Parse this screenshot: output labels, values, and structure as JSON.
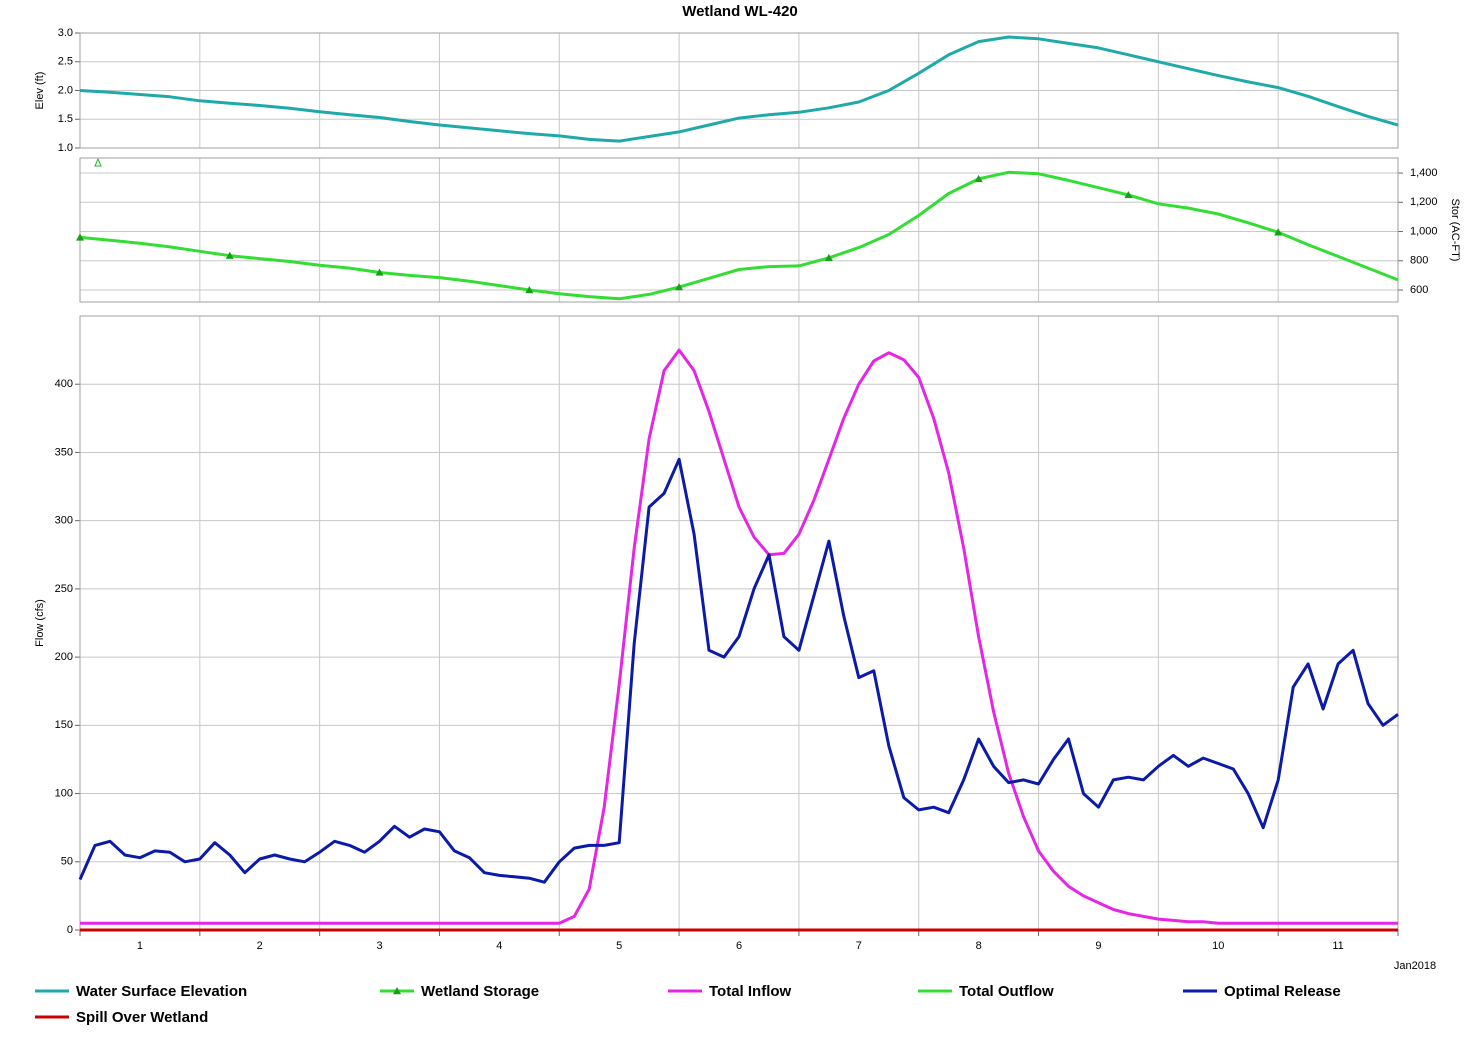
{
  "title": "Wetland WL-420",
  "x_categories": [
    "1",
    "2",
    "3",
    "4",
    "5",
    "6",
    "7",
    "8",
    "9",
    "10",
    "11"
  ],
  "x_end_label": "Jan2018",
  "chart_data": [
    {
      "type": "line",
      "ylabel": "Elev (ft)",
      "axis_side": "left",
      "xlim": [
        0,
        11
      ],
      "xticks": [
        0,
        1,
        2,
        3,
        4,
        5,
        6,
        7,
        8,
        9,
        10,
        11
      ],
      "ylim": [
        1,
        3
      ],
      "yticks": [
        {
          "value": 1,
          "label": "1.0"
        },
        1.5,
        {
          "value": 2,
          "label": "2.0"
        },
        2.5,
        {
          "value": 3,
          "label": "3.0"
        }
      ],
      "grid": true,
      "x": [
        0,
        0.25,
        0.5,
        0.75,
        1,
        1.25,
        1.5,
        1.75,
        2,
        2.25,
        2.5,
        2.75,
        3,
        3.25,
        3.5,
        3.75,
        4,
        4.25,
        4.5,
        4.75,
        5,
        5.25,
        5.5,
        5.75,
        6,
        6.25,
        6.5,
        6.75,
        7,
        7.25,
        7.5,
        7.75,
        8,
        8.25,
        8.5,
        8.75,
        9,
        9.25,
        9.5,
        9.75,
        10,
        10.25,
        10.5,
        10.75,
        11
      ],
      "series": [
        {
          "name": "Water Surface Elevation",
          "color": "#1fa9a9",
          "values": [
            2.0,
            1.97,
            1.93,
            1.89,
            1.82,
            1.78,
            1.74,
            1.69,
            1.63,
            1.58,
            1.53,
            1.46,
            1.4,
            1.35,
            1.3,
            1.25,
            1.21,
            1.15,
            1.12,
            1.2,
            1.28,
            1.4,
            1.52,
            1.58,
            1.62,
            1.7,
            1.8,
            2.0,
            2.3,
            2.62,
            2.85,
            2.93,
            2.9,
            2.82,
            2.74,
            2.62,
            2.5,
            2.38,
            2.26,
            2.15,
            2.05,
            1.9,
            1.72,
            1.55,
            1.4
          ]
        }
      ]
    },
    {
      "type": "line",
      "ylabel": "Stor (AC-FT)",
      "axis_side": "right",
      "xlim": [
        0,
        11
      ],
      "xticks": [
        0,
        1,
        2,
        3,
        4,
        5,
        6,
        7,
        8,
        9,
        10,
        11
      ],
      "ylim": [
        518,
        1503
      ],
      "yticks": [
        600,
        800,
        {
          "value": 1000,
          "label": "1,000"
        },
        {
          "value": 1200,
          "label": "1,200"
        },
        {
          "value": 1400,
          "label": "1,400"
        }
      ],
      "grid": true,
      "x": [
        0,
        0.25,
        0.5,
        0.75,
        1,
        1.25,
        1.5,
        1.75,
        2,
        2.25,
        2.5,
        2.75,
        3,
        3.25,
        3.5,
        3.75,
        4,
        4.25,
        4.5,
        4.75,
        5,
        5.25,
        5.5,
        5.75,
        6,
        6.25,
        6.5,
        6.75,
        7,
        7.25,
        7.5,
        7.75,
        8,
        8.25,
        8.5,
        8.75,
        9,
        9.25,
        9.5,
        9.75,
        10,
        10.25,
        10.5,
        10.75,
        11
      ],
      "series": [
        {
          "name": "Wetland Storage",
          "color": "#33dd33",
          "marker": "triangle",
          "marker_every": 5,
          "values": [
            960,
            940,
            920,
            895,
            865,
            835,
            815,
            795,
            770,
            750,
            720,
            700,
            685,
            660,
            630,
            600,
            575,
            555,
            540,
            570,
            620,
            680,
            740,
            760,
            765,
            820,
            890,
            980,
            1110,
            1260,
            1360,
            1405,
            1395,
            1350,
            1300,
            1250,
            1190,
            1160,
            1120,
            1060,
            995,
            910,
            830,
            750,
            670
          ]
        }
      ]
    },
    {
      "type": "line",
      "ylabel": "Flow (cfs)",
      "axis_side": "left",
      "xlim": [
        0,
        11
      ],
      "xticks": [
        0,
        1,
        2,
        3,
        4,
        5,
        6,
        7,
        8,
        9,
        10,
        11
      ],
      "ylim": [
        0,
        450
      ],
      "yticks": [
        0,
        50,
        100,
        150,
        200,
        250,
        300,
        350,
        400
      ],
      "grid": true,
      "x": [
        0,
        0.125,
        0.25,
        0.375,
        0.5,
        0.625,
        0.75,
        0.875,
        1,
        1.125,
        1.25,
        1.375,
        1.5,
        1.625,
        1.75,
        1.875,
        2,
        2.125,
        2.25,
        2.375,
        2.5,
        2.625,
        2.75,
        2.875,
        3,
        3.125,
        3.25,
        3.375,
        3.5,
        3.625,
        3.75,
        3.875,
        4,
        4.125,
        4.25,
        4.375,
        4.5,
        4.625,
        4.75,
        4.875,
        5,
        5.125,
        5.25,
        5.375,
        5.5,
        5.625,
        5.75,
        5.875,
        6,
        6.125,
        6.25,
        6.375,
        6.5,
        6.625,
        6.75,
        6.875,
        7,
        7.125,
        7.25,
        7.375,
        7.5,
        7.625,
        7.75,
        7.875,
        8,
        8.125,
        8.25,
        8.375,
        8.5,
        8.625,
        8.75,
        8.875,
        9,
        9.125,
        9.25,
        9.375,
        9.5,
        9.625,
        9.75,
        9.875,
        10,
        10.125,
        10.25,
        10.375,
        10.5,
        10.625,
        10.75,
        10.875,
        11
      ],
      "series": [
        {
          "name": "Total Inflow",
          "color": "#e526e5",
          "values": [
            5,
            5,
            5,
            5,
            5,
            5,
            5,
            5,
            5,
            5,
            5,
            5,
            5,
            5,
            5,
            5,
            5,
            5,
            5,
            5,
            5,
            5,
            5,
            5,
            5,
            5,
            5,
            5,
            5,
            5,
            5,
            5,
            5,
            10,
            30,
            90,
            180,
            280,
            360,
            410,
            425,
            410,
            380,
            345,
            310,
            288,
            275,
            276,
            290,
            315,
            345,
            375,
            400,
            417,
            423,
            418,
            405,
            375,
            335,
            280,
            215,
            160,
            115,
            83,
            58,
            43,
            32,
            25,
            20,
            15,
            12,
            10,
            8,
            7,
            6,
            6,
            5,
            5,
            5,
            5,
            5,
            5,
            5,
            5,
            5,
            5,
            5,
            5,
            5
          ]
        },
        {
          "name": "Total Outflow",
          "color": "#33dd33"
        },
        {
          "name": "Optimal Release",
          "color": "#0b1aa8",
          "values": [
            37,
            62,
            65,
            55,
            53,
            58,
            57,
            50,
            52,
            64,
            55,
            42,
            52,
            55,
            52,
            50,
            57,
            65,
            62,
            57,
            65,
            76,
            68,
            74,
            72,
            58,
            53,
            42,
            40,
            39,
            38,
            35,
            50,
            60,
            62,
            62,
            64,
            210,
            310,
            320,
            345,
            290,
            205,
            200,
            215,
            250,
            275,
            215,
            205,
            245,
            285,
            230,
            185,
            190,
            135,
            97,
            88,
            90,
            86,
            110,
            140,
            120,
            108,
            110,
            107,
            125,
            140,
            100,
            90,
            110,
            112,
            110,
            120,
            128,
            120,
            126,
            122,
            118,
            100,
            75,
            110,
            178,
            195,
            162,
            195,
            205,
            166,
            150,
            158
          ]
        },
        {
          "name": "Spill Over Wetland",
          "color": "#cc0000",
          "values": [
            0,
            0,
            0,
            0,
            0,
            0,
            0,
            0,
            0,
            0,
            0,
            0,
            0,
            0,
            0,
            0,
            0,
            0,
            0,
            0,
            0,
            0,
            0,
            0,
            0,
            0,
            0,
            0,
            0,
            0,
            0,
            0,
            0,
            0,
            0,
            0,
            0,
            0,
            0,
            0,
            0,
            0,
            0,
            0,
            0,
            0,
            0,
            0,
            0,
            0,
            0,
            0,
            0,
            0,
            0,
            0,
            0,
            0,
            0,
            0,
            0,
            0,
            0,
            0,
            0,
            0,
            0,
            0,
            0,
            0,
            0,
            0,
            0,
            0,
            0,
            0,
            0,
            0,
            0,
            0,
            0,
            0,
            0,
            0,
            0,
            0,
            0,
            0,
            0
          ]
        }
      ]
    }
  ]
}
